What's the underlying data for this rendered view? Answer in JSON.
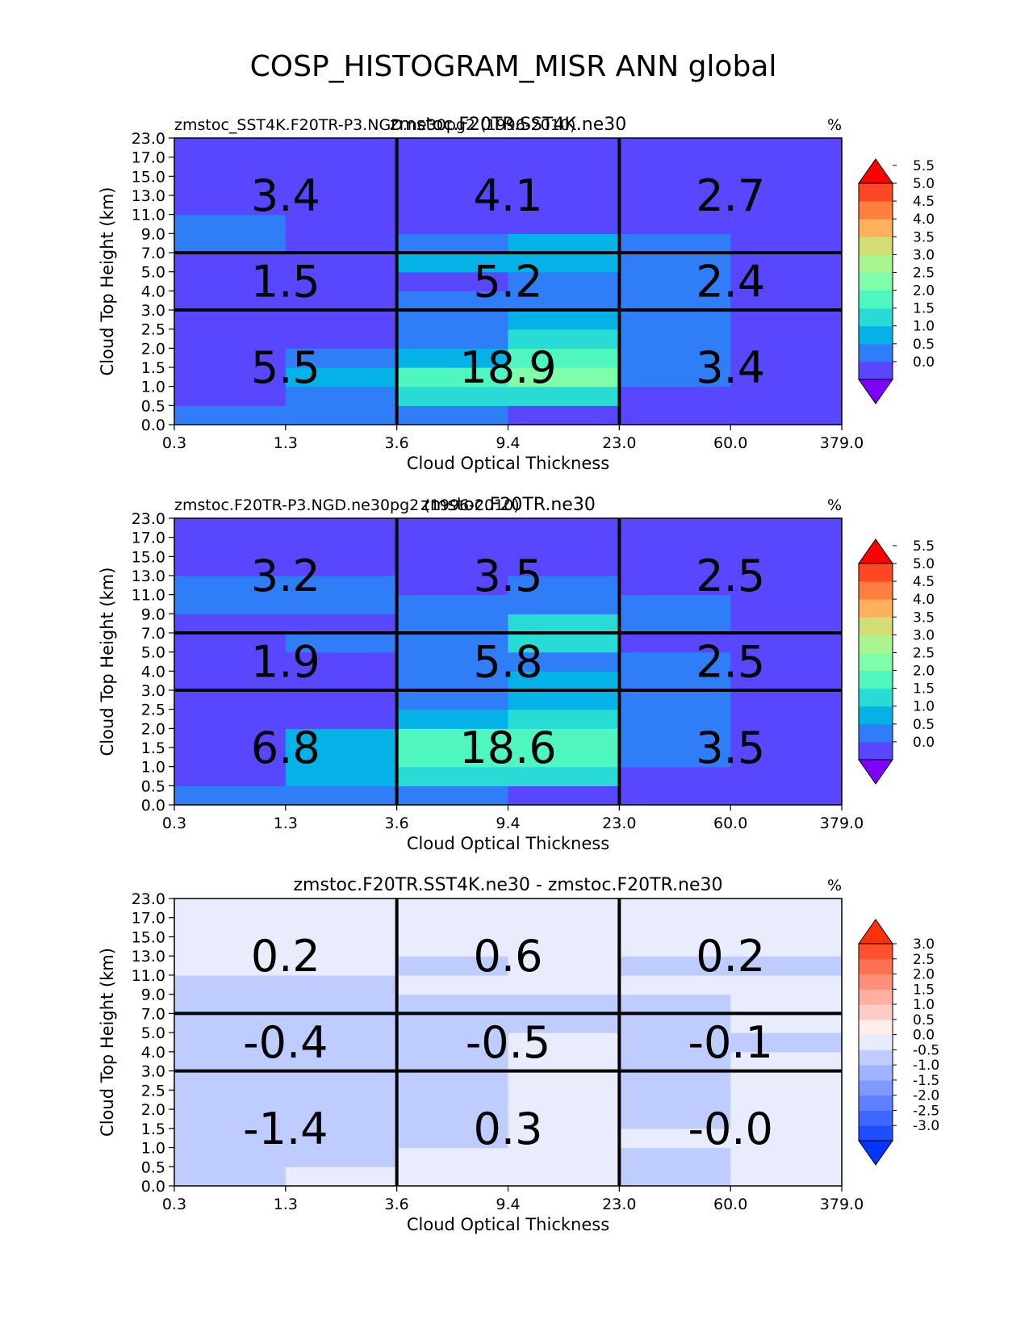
{
  "figure_title": "COSP_HISTOGRAM_MISR ANN global",
  "chart_data": [
    {
      "type": "heatmap",
      "title": "zmstoc.F20TR.SST4K.ne30",
      "left_title": "zmstoc_SST4K.F20TR-P3.NGD.ne30pg2 (1996-2010)",
      "units": "%",
      "xlabel": "Cloud Optical Thickness",
      "ylabel": "Cloud Top Height (km)",
      "x_ticks": [
        "0.3",
        "1.3",
        "3.6",
        "9.4",
        "23.0",
        "60.0",
        "379.0"
      ],
      "y_ticks": [
        "0.0",
        "0.5",
        "1.0",
        "1.5",
        "2.0",
        "2.5",
        "3.0",
        "4.0",
        "5.0",
        "7.0",
        "9.0",
        "11.0",
        "13.0",
        "15.0",
        "17.0",
        "23.0"
      ],
      "cell_values": [
        [
          0.8,
          0.8,
          0.8,
          0.2,
          0.2,
          0.2
        ],
        [
          0.2,
          0.8,
          1.8,
          1.8,
          0.2,
          0.2
        ],
        [
          0.2,
          1.3,
          2.3,
          2.8,
          0.8,
          0.2
        ],
        [
          0.2,
          0.8,
          1.3,
          2.3,
          0.8,
          0.2
        ],
        [
          0.2,
          0.2,
          0.8,
          1.8,
          0.8,
          0.2
        ],
        [
          0.2,
          0.2,
          0.8,
          1.3,
          0.8,
          0.2
        ],
        [
          0.2,
          0.2,
          0.8,
          0.8,
          0.8,
          0.2
        ],
        [
          0.2,
          0.2,
          0.2,
          0.8,
          0.8,
          0.2
        ],
        [
          0.2,
          0.2,
          1.3,
          1.3,
          0.8,
          0.2
        ],
        [
          0.8,
          0.2,
          0.8,
          1.3,
          0.8,
          0.2
        ],
        [
          0.8,
          0.2,
          0.2,
          0.2,
          0.2,
          0.2
        ],
        [
          0.2,
          0.2,
          0.2,
          0.2,
          0.2,
          0.2
        ],
        [
          0.2,
          0.2,
          0.2,
          0.2,
          0.2,
          0.2
        ],
        [
          0.2,
          0.2,
          0.2,
          0.2,
          0.2,
          0.2
        ],
        [
          0.2,
          0.2,
          0.2,
          0.2,
          0.2,
          0.2
        ]
      ],
      "box_sums": [
        [
          "3.4",
          "4.1",
          "2.7"
        ],
        [
          "1.5",
          "5.2",
          "2.4"
        ],
        [
          "5.5",
          "18.9",
          "3.4"
        ]
      ],
      "colorbar": {
        "levels": [
          "0.0",
          "0.5",
          "1.0",
          "1.5",
          "2.0",
          "2.5",
          "3.0",
          "3.5",
          "4.0",
          "4.5",
          "5.0",
          "5.5"
        ],
        "colors": [
          "#7f00ff",
          "#5947ff",
          "#2f7ef7",
          "#04b2e8",
          "#29dbd5",
          "#50f6c0",
          "#7ffda8",
          "#a9f690",
          "#d4dc76",
          "#fdb15c",
          "#ff7f40",
          "#ff4724",
          "#ff0000"
        ]
      }
    },
    {
      "type": "heatmap",
      "title": "zmstoc.F20TR.ne30",
      "left_title": "zmstoc.F20TR-P3.NGD.ne30pg2 (1996-2010)",
      "units": "%",
      "xlabel": "Cloud Optical Thickness",
      "ylabel": "Cloud Top Height (km)",
      "x_ticks": [
        "0.3",
        "1.3",
        "3.6",
        "9.4",
        "23.0",
        "60.0",
        "379.0"
      ],
      "y_ticks": [
        "0.0",
        "0.5",
        "1.0",
        "1.5",
        "2.0",
        "2.5",
        "3.0",
        "4.0",
        "5.0",
        "7.0",
        "9.0",
        "11.0",
        "13.0",
        "15.0",
        "17.0",
        "23.0"
      ],
      "cell_values": [
        [
          0.8,
          0.8,
          0.8,
          0.2,
          0.2,
          0.2
        ],
        [
          0.2,
          1.3,
          1.8,
          1.8,
          0.2,
          0.2
        ],
        [
          0.2,
          1.3,
          2.3,
          2.3,
          0.8,
          0.2
        ],
        [
          0.2,
          1.3,
          2.3,
          2.3,
          0.8,
          0.2
        ],
        [
          0.2,
          0.2,
          1.3,
          1.8,
          0.8,
          0.2
        ],
        [
          0.2,
          0.2,
          0.8,
          1.3,
          0.8,
          0.2
        ],
        [
          0.2,
          0.2,
          0.8,
          1.3,
          0.8,
          0.2
        ],
        [
          0.2,
          0.2,
          0.8,
          0.8,
          0.8,
          0.2
        ],
        [
          0.2,
          0.8,
          0.8,
          1.8,
          0.2,
          0.2
        ],
        [
          0.2,
          0.2,
          0.8,
          1.8,
          0.8,
          0.2
        ],
        [
          0.8,
          0.8,
          0.8,
          0.8,
          0.8,
          0.2
        ],
        [
          0.8,
          0.8,
          0.2,
          0.8,
          0.2,
          0.2
        ],
        [
          0.2,
          0.2,
          0.2,
          0.2,
          0.2,
          0.2
        ],
        [
          0.2,
          0.2,
          0.2,
          0.2,
          0.2,
          0.2
        ],
        [
          0.2,
          0.2,
          0.2,
          0.2,
          0.2,
          0.2
        ]
      ],
      "box_sums": [
        [
          "3.2",
          "3.5",
          "2.5"
        ],
        [
          "1.9",
          "5.8",
          "2.5"
        ],
        [
          "6.8",
          "18.6",
          "3.5"
        ]
      ],
      "colorbar": {
        "levels": [
          "0.0",
          "0.5",
          "1.0",
          "1.5",
          "2.0",
          "2.5",
          "3.0",
          "3.5",
          "4.0",
          "4.5",
          "5.0",
          "5.5"
        ],
        "colors": [
          "#7f00ff",
          "#5947ff",
          "#2f7ef7",
          "#04b2e8",
          "#29dbd5",
          "#50f6c0",
          "#7ffda8",
          "#a9f690",
          "#d4dc76",
          "#fdb15c",
          "#ff7f40",
          "#ff4724",
          "#ff0000"
        ]
      }
    },
    {
      "type": "heatmap",
      "title": "zmstoc.F20TR.SST4K.ne30 - zmstoc.F20TR.ne30",
      "left_title": "",
      "units": "%",
      "xlabel": "Cloud Optical Thickness",
      "ylabel": "Cloud Top Height (km)",
      "x_ticks": [
        "0.3",
        "1.3",
        "3.6",
        "9.4",
        "23.0",
        "60.0",
        "379.0"
      ],
      "y_ticks": [
        "0.0",
        "0.5",
        "1.0",
        "1.5",
        "2.0",
        "2.5",
        "3.0",
        "4.0",
        "5.0",
        "7.0",
        "9.0",
        "11.0",
        "13.0",
        "15.0",
        "17.0",
        "23.0"
      ],
      "cell_values": [
        [
          -0.2,
          0.2,
          0.2,
          0.2,
          -0.2,
          0.2
        ],
        [
          -0.2,
          -0.2,
          0.2,
          0.2,
          -0.2,
          0.2
        ],
        [
          -0.2,
          -0.2,
          -0.2,
          0.2,
          0.2,
          0.2
        ],
        [
          -0.2,
          -0.2,
          -0.2,
          0.2,
          -0.2,
          0.2
        ],
        [
          -0.2,
          -0.2,
          -0.2,
          0.2,
          -0.2,
          0.2
        ],
        [
          -0.2,
          -0.2,
          -0.2,
          0.2,
          -0.2,
          0.2
        ],
        [
          -0.2,
          -0.2,
          -0.2,
          0.2,
          -0.2,
          0.2
        ],
        [
          -0.2,
          -0.2,
          -0.2,
          0.2,
          -0.2,
          -0.2
        ],
        [
          -0.2,
          -0.2,
          -0.2,
          -0.2,
          -0.2,
          0.2
        ],
        [
          -0.2,
          -0.2,
          -0.2,
          -0.2,
          -0.2,
          0.2
        ],
        [
          -0.2,
          -0.2,
          0.2,
          0.2,
          0.2,
          0.2
        ],
        [
          0.2,
          0.2,
          -0.2,
          0.2,
          -0.2,
          -0.2
        ],
        [
          0.2,
          0.2,
          0.2,
          0.2,
          0.2,
          0.2
        ],
        [
          0.2,
          0.2,
          0.2,
          0.2,
          0.2,
          0.2
        ],
        [
          0.2,
          0.2,
          0.2,
          0.2,
          0.2,
          0.2
        ]
      ],
      "box_sums": [
        [
          "0.2",
          "0.6",
          "0.2"
        ],
        [
          "-0.4",
          "-0.5",
          "-0.1"
        ],
        [
          "-1.4",
          "0.3",
          "-0.0"
        ]
      ],
      "colorbar": {
        "levels": [
          "-3.0",
          "-2.5",
          "-2.0",
          "-1.5",
          "-1.0",
          "-0.5",
          "0.0",
          "0.5",
          "1.0",
          "1.5",
          "2.0",
          "2.5",
          "3.0"
        ],
        "colors": [
          "#0035ff",
          "#1f4dff",
          "#3f66ff",
          "#5f80ff",
          "#7f99ff",
          "#9fb3ff",
          "#bfccff",
          "#e8ecfd",
          "#fdeeeb",
          "#ffcdc5",
          "#ffae9f",
          "#ff8f79",
          "#ff7053",
          "#ff512d",
          "#ff3107"
        ]
      }
    }
  ]
}
